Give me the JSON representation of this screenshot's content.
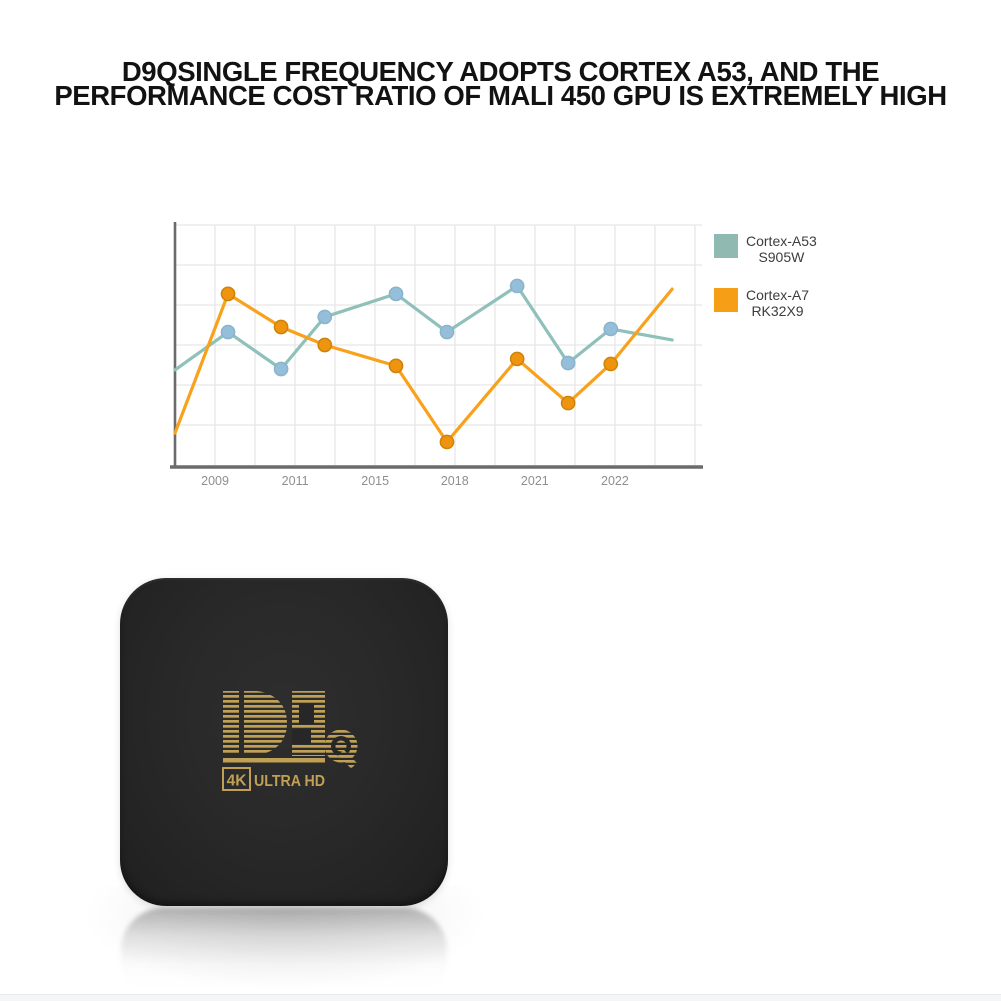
{
  "headline": {
    "line1": "D9QSINGLE FREQUENCY ADOPTS CORTEX A53, AND THE",
    "line2": "PERFORMANCE COST RATIO OF MALI 450 GPU IS EXTREMELY HIGH",
    "color": "#121212"
  },
  "chart_data": {
    "type": "line",
    "title": "",
    "xlabel": "",
    "ylabel": "",
    "ylim": [
      0,
      100
    ],
    "grid": true,
    "gridline_color": "#e6e6e6",
    "axis_color": "#6b6b6b",
    "tick_label_color": "#8f8f8f",
    "x_tick_labels": [
      "2009",
      "2011",
      "2015",
      "2018",
      "2021",
      "2022"
    ],
    "x_tick_positions_pct": [
      7.7,
      23.1,
      38.5,
      53.8,
      69.2,
      84.6
    ],
    "x_pct": [
      0,
      10.2,
      20.4,
      28.8,
      42.5,
      52.3,
      65.8,
      75.6,
      83.8,
      95.6
    ],
    "marker_flags": [
      0,
      1,
      1,
      1,
      1,
      1,
      1,
      1,
      1,
      0
    ],
    "legend_position": "right",
    "series": [
      {
        "name": "Cortex-A53",
        "chip": "S905W",
        "values": [
          39.6,
          55.4,
          40.0,
          61.7,
          71.3,
          55.4,
          74.6,
          42.5,
          56.7,
          52.1
        ],
        "line_color": "#8fc0ba",
        "marker_color": "#95bed8",
        "marker_stroke": "#8ab3cd",
        "legend_swatch_color": "#90bab1"
      },
      {
        "name": "Cortex-A7",
        "chip": "RK32X9",
        "values": [
          13.3,
          71.3,
          57.5,
          50.0,
          41.3,
          9.6,
          44.2,
          25.8,
          42.1,
          73.3
        ],
        "line_color": "#f9a11b",
        "marker_color": "#ef940f",
        "marker_stroke": "#cd8308",
        "legend_swatch_color": "#f69e15"
      }
    ]
  },
  "product": {
    "logo_text": "D9Q",
    "badge_4k": "4K",
    "badge_uhd": "ULTRA HD",
    "gold": "#bfa054",
    "body_color": "#272727"
  }
}
